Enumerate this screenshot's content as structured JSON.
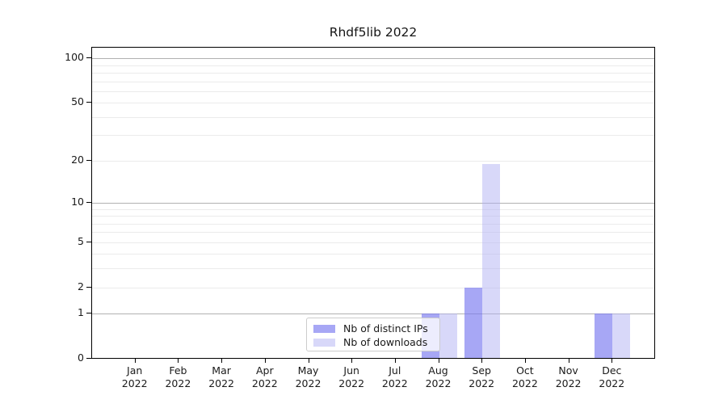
{
  "chart_data": {
    "type": "bar",
    "title": "Rhdf5lib 2022",
    "categories": [
      "Jan",
      "Feb",
      "Mar",
      "Apr",
      "May",
      "Jun",
      "Jul",
      "Aug",
      "Sep",
      "Oct",
      "Nov",
      "Dec"
    ],
    "x_year_label": "2022",
    "series": [
      {
        "id": "distinct-ips",
        "name": "Nb of distinct IPs",
        "color": "rgba(120,120,240,0.65)",
        "values": [
          0,
          0,
          0,
          0,
          0,
          0,
          0,
          1,
          2,
          0,
          0,
          1
        ]
      },
      {
        "id": "downloads",
        "name": "Nb of downloads",
        "color": "rgba(175,175,242,0.49)",
        "values": [
          0,
          0,
          0,
          0,
          0,
          0,
          0,
          1,
          19,
          0,
          0,
          1
        ]
      }
    ],
    "yscale": "log1p",
    "ylim": [
      0,
      118
    ],
    "yticks": [
      0,
      1,
      2,
      5,
      10,
      20,
      50,
      100
    ],
    "grid": {
      "major": [
        1,
        10,
        100
      ],
      "minor": [
        2,
        3,
        4,
        5,
        6,
        7,
        8,
        9,
        20,
        30,
        40,
        50,
        60,
        70,
        80,
        90
      ]
    },
    "legend": {
      "position": "lower center",
      "entries": [
        "Nb of distinct IPs",
        "Nb of downloads"
      ]
    },
    "colors": {
      "grid_major": "#b1b1b1",
      "grid_minor": "#ebebeb",
      "spine": "#000000",
      "text": "#1a1a1a",
      "background": "#ffffff"
    }
  }
}
